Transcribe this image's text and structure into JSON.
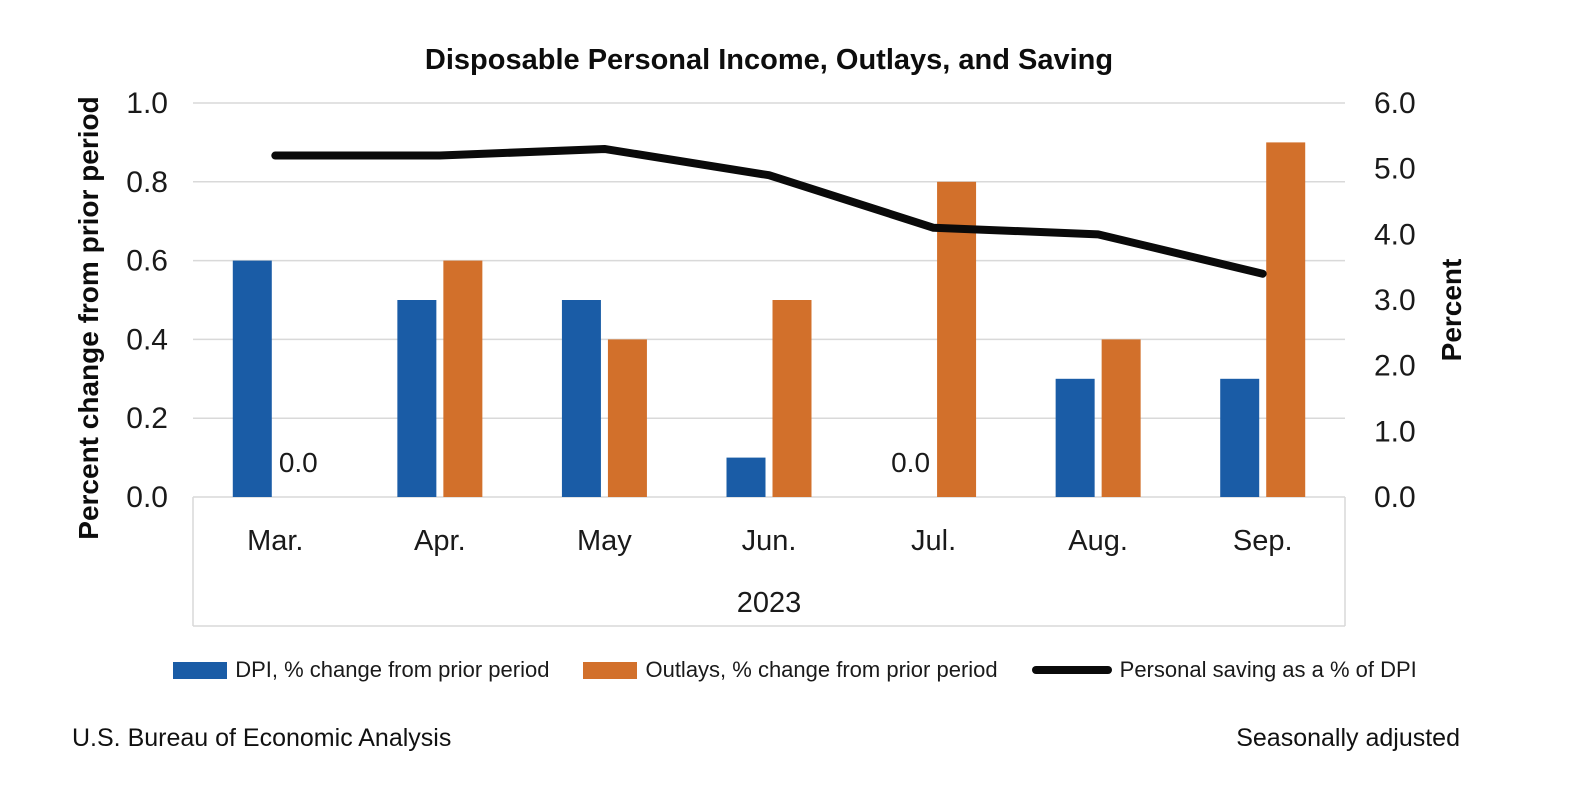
{
  "title": "Disposable Personal Income, Outlays, and Saving",
  "chart_data": {
    "type": "bar",
    "subtype": "combo-bar-line-dual-axis",
    "categories": [
      "Mar.",
      "Apr.",
      "May",
      "Jun.",
      "Jul.",
      "Aug.",
      "Sep."
    ],
    "year_label": "2023",
    "left_axis": {
      "title": "Percent change from prior period",
      "min": 0.0,
      "max": 1.0,
      "tick_labels": [
        "1.0",
        "0.8",
        "0.6",
        "0.4",
        "0.2",
        "0.0"
      ]
    },
    "right_axis": {
      "title": "Percent",
      "min": 0.0,
      "max": 6.0,
      "tick_labels": [
        "6.0",
        "5.0",
        "4.0",
        "3.0",
        "2.0",
        "1.0",
        "0.0"
      ]
    },
    "series": [
      {
        "name": "DPI, % change from prior period",
        "type": "bar",
        "axis": "left",
        "color": "#1A5CA6",
        "values": [
          0.6,
          0.5,
          0.5,
          0.1,
          0.0,
          0.3,
          0.3
        ]
      },
      {
        "name": "Outlays, % change from prior period",
        "type": "bar",
        "axis": "left",
        "color": "#D2702B",
        "values": [
          0.0,
          0.6,
          0.4,
          0.5,
          0.8,
          0.4,
          0.9
        ]
      },
      {
        "name": "Personal saving as a % of DPI",
        "type": "line",
        "axis": "right",
        "color": "#0A0A0A",
        "values": [
          5.2,
          5.2,
          5.3,
          4.9,
          4.1,
          4.0,
          3.4
        ]
      }
    ],
    "point_labels": [
      {
        "series": "Outlays, % change from prior period",
        "category": "Mar.",
        "text": "0.0"
      },
      {
        "series": "DPI, % change from prior period",
        "category": "Jul.",
        "text": "0.0"
      }
    ],
    "gridlines": {
      "show": true,
      "color": "#D9D9D9"
    },
    "legend_position": "bottom"
  },
  "footer": {
    "left": "U.S. Bureau of Economic Analysis",
    "right": "Seasonally adjusted"
  }
}
